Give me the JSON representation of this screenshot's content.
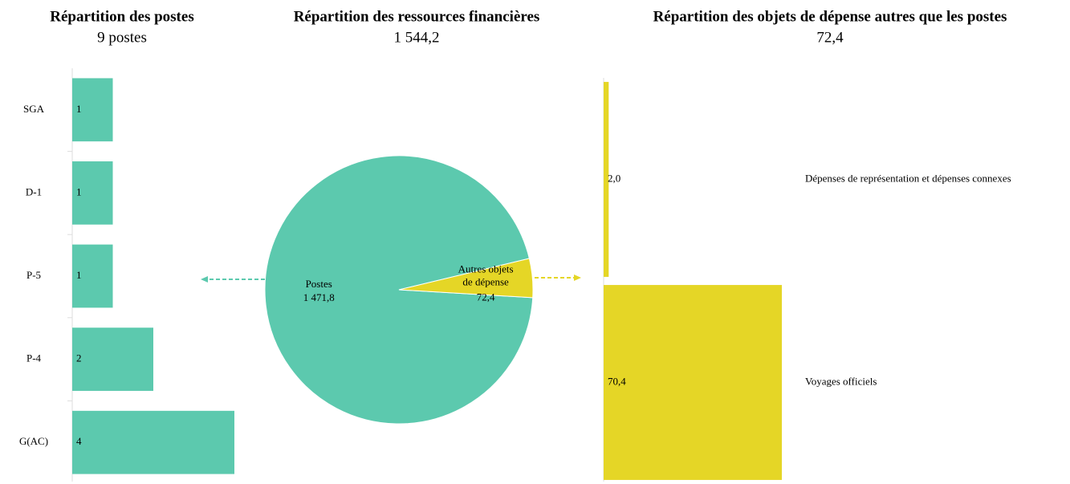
{
  "chart_data": [
    {
      "type": "hbar",
      "title": "Répartition des postes",
      "subtitle": "9 postes",
      "categories": [
        "SGA",
        "D-1",
        "P-5",
        "P-4",
        "G(AC)"
      ],
      "values": [
        1,
        1,
        1,
        2,
        4
      ],
      "color": "#5cc9ae",
      "xlim": [
        0,
        4
      ]
    },
    {
      "type": "pie",
      "title": "Répartition des ressources financières",
      "subtitle": "1 544,2",
      "categories": [
        "Postes",
        "Autres objets de dépense"
      ],
      "values": [
        1471.8,
        72.4
      ],
      "value_labels": [
        "1 471,8",
        "72,4"
      ],
      "colors": [
        "#5cc9ae",
        "#e5d626"
      ]
    },
    {
      "type": "hbar",
      "title": "Répartition des objets de dépense autres que les postes",
      "subtitle": "72,4",
      "categories": [
        "Dépenses de représentation et dépenses connexes",
        "Voyages officiels"
      ],
      "values": [
        2.0,
        70.4
      ],
      "value_labels": [
        "2,0",
        "70,4"
      ],
      "color": "#e5d626",
      "xlim": [
        0,
        70.4
      ]
    }
  ]
}
